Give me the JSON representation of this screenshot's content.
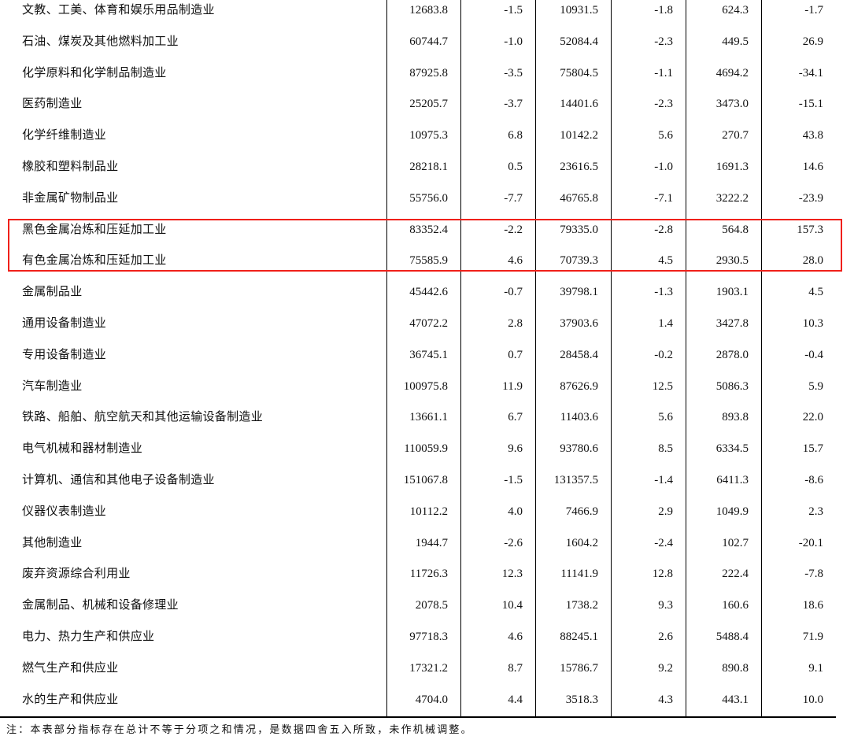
{
  "rows": [
    {
      "name": "文教、工美、体育和娱乐用品制造业",
      "values": [
        "12683.8",
        "-1.5",
        "10931.5",
        "-1.8",
        "624.3",
        "-1.7"
      ]
    },
    {
      "name": "石油、煤炭及其他燃料加工业",
      "values": [
        "60744.7",
        "-1.0",
        "52084.4",
        "-2.3",
        "449.5",
        "26.9"
      ]
    },
    {
      "name": "化学原料和化学制品制造业",
      "values": [
        "87925.8",
        "-3.5",
        "75804.5",
        "-1.1",
        "4694.2",
        "-34.1"
      ]
    },
    {
      "name": "医药制造业",
      "values": [
        "25205.7",
        "-3.7",
        "14401.6",
        "-2.3",
        "3473.0",
        "-15.1"
      ]
    },
    {
      "name": "化学纤维制造业",
      "values": [
        "10975.3",
        "6.8",
        "10142.2",
        "5.6",
        "270.7",
        "43.8"
      ]
    },
    {
      "name": "橡胶和塑料制品业",
      "values": [
        "28218.1",
        "0.5",
        "23616.5",
        "-1.0",
        "1691.3",
        "14.6"
      ]
    },
    {
      "name": "非金属矿物制品业",
      "values": [
        "55756.0",
        "-7.7",
        "46765.8",
        "-7.1",
        "3222.2",
        "-23.9"
      ]
    },
    {
      "name": "黑色金属冶炼和压延加工业",
      "values": [
        "83352.4",
        "-2.2",
        "79335.0",
        "-2.8",
        "564.8",
        "157.3"
      ]
    },
    {
      "name": "有色金属冶炼和压延加工业",
      "values": [
        "75585.9",
        "4.6",
        "70739.3",
        "4.5",
        "2930.5",
        "28.0"
      ]
    },
    {
      "name": "金属制品业",
      "values": [
        "45442.6",
        "-0.7",
        "39798.1",
        "-1.3",
        "1903.1",
        "4.5"
      ]
    },
    {
      "name": "通用设备制造业",
      "values": [
        "47072.2",
        "2.8",
        "37903.6",
        "1.4",
        "3427.8",
        "10.3"
      ]
    },
    {
      "name": "专用设备制造业",
      "values": [
        "36745.1",
        "0.7",
        "28458.4",
        "-0.2",
        "2878.0",
        "-0.4"
      ]
    },
    {
      "name": "汽车制造业",
      "values": [
        "100975.8",
        "11.9",
        "87626.9",
        "12.5",
        "5086.3",
        "5.9"
      ]
    },
    {
      "name": "铁路、船舶、航空航天和其他运输设备制造业",
      "values": [
        "13661.1",
        "6.7",
        "11403.6",
        "5.6",
        "893.8",
        "22.0"
      ]
    },
    {
      "name": "电气机械和器材制造业",
      "values": [
        "110059.9",
        "9.6",
        "93780.6",
        "8.5",
        "6334.5",
        "15.7"
      ]
    },
    {
      "name": "计算机、通信和其他电子设备制造业",
      "values": [
        "151067.8",
        "-1.5",
        "131357.5",
        "-1.4",
        "6411.3",
        "-8.6"
      ]
    },
    {
      "name": "仪器仪表制造业",
      "values": [
        "10112.2",
        "4.0",
        "7466.9",
        "2.9",
        "1049.9",
        "2.3"
      ]
    },
    {
      "name": "其他制造业",
      "values": [
        "1944.7",
        "-2.6",
        "1604.2",
        "-2.4",
        "102.7",
        "-20.1"
      ]
    },
    {
      "name": "废弃资源综合利用业",
      "values": [
        "11726.3",
        "12.3",
        "11141.9",
        "12.8",
        "222.4",
        "-7.8"
      ]
    },
    {
      "name": "金属制品、机械和设备修理业",
      "values": [
        "2078.5",
        "10.4",
        "1738.2",
        "9.3",
        "160.6",
        "18.6"
      ]
    },
    {
      "name": "电力、热力生产和供应业",
      "values": [
        "97718.3",
        "4.6",
        "88245.1",
        "2.6",
        "5488.4",
        "71.9"
      ]
    },
    {
      "name": "燃气生产和供应业",
      "values": [
        "17321.2",
        "8.7",
        "15786.7",
        "9.2",
        "890.8",
        "9.1"
      ]
    },
    {
      "name": "水的生产和供应业",
      "values": [
        "4704.0",
        "4.4",
        "3518.3",
        "4.3",
        "443.1",
        "10.0"
      ]
    }
  ],
  "highlighted_rows": [
    "黑色金属冶炼和压延加工业",
    "有色金属冶炼和压延加工业"
  ],
  "highlight_color": "#f0201a",
  "note": "注：本表部分指标存在总计不等于分项之和情况，是数据四舍五入所致，未作机械调整。"
}
